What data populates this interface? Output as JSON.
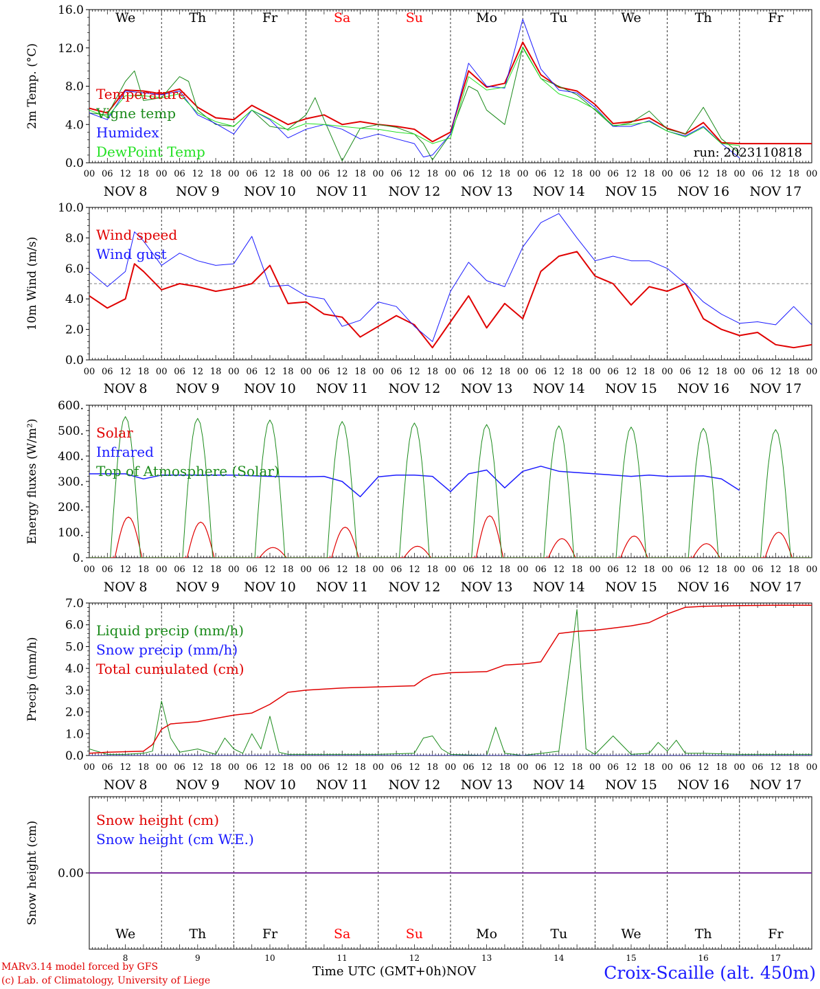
{
  "run_label": "run: 2023110818",
  "footer": {
    "model": "MARv3.14 model forced by GFS",
    "credit": "(c) Lab. of Climatology, University of Liege",
    "time_axis": "Time UTC (GMT+0h)",
    "month": "NOV",
    "station": "Croix-Scaille (alt. 450m)"
  },
  "days": [
    {
      "weekday": "We",
      "date": "8",
      "label": "NOV  8",
      "weekend": false
    },
    {
      "weekday": "Th",
      "date": "9",
      "label": "NOV  9",
      "weekend": false
    },
    {
      "weekday": "Fr",
      "date": "10",
      "label": "NOV 10",
      "weekend": false
    },
    {
      "weekday": "Sa",
      "date": "11",
      "label": "NOV 11",
      "weekend": true
    },
    {
      "weekday": "Su",
      "date": "12",
      "label": "NOV 12",
      "weekend": true
    },
    {
      "weekday": "Mo",
      "date": "13",
      "label": "NOV 13",
      "weekend": false
    },
    {
      "weekday": "Tu",
      "date": "14",
      "label": "NOV 14",
      "weekend": false
    },
    {
      "weekday": "We",
      "date": "15",
      "label": "NOV 15",
      "weekend": false
    },
    {
      "weekday": "Th",
      "date": "16",
      "label": "NOV 16",
      "weekend": false
    },
    {
      "weekday": "Fr",
      "date": "17",
      "label": "NOV 17",
      "weekend": false
    }
  ],
  "hour_ticks": [
    "00",
    "06",
    "12",
    "18"
  ],
  "final_hour_tick": "00",
  "colors": {
    "red": "#e00000",
    "green": "#1a8a1a",
    "blue": "#1a1aff",
    "lime": "#22e022",
    "purple": "#7a2a9a",
    "weekend": "#ff0000"
  },
  "chart_data": [
    {
      "id": "temp",
      "type": "line",
      "ylabel": "2m Temp. (°C)",
      "ylim": [
        0,
        16
      ],
      "yticks": [
        "0.0",
        "4.0",
        "8.0",
        "12.0",
        "16.0"
      ],
      "x_unit": "hours since NOV 8 00 UTC",
      "x_range": [
        0,
        240
      ],
      "legend_placement": "left",
      "series": [
        {
          "name": "Temperature",
          "color": "red",
          "width": 2,
          "x": [
            0,
            6,
            12,
            18,
            24,
            30,
            36,
            42,
            48,
            54,
            60,
            66,
            72,
            78,
            84,
            90,
            96,
            102,
            108,
            114,
            120,
            126,
            132,
            138,
            144,
            150,
            156,
            162,
            168,
            174,
            180,
            186,
            192,
            198,
            204,
            210,
            216,
            222,
            228,
            234,
            240
          ],
          "values": [
            5.7,
            5.2,
            7.6,
            7.5,
            7.2,
            7.7,
            5.8,
            4.7,
            4.5,
            6.0,
            5.0,
            4.0,
            4.6,
            5.0,
            4.0,
            4.3,
            4.0,
            3.8,
            3.5,
            2.2,
            3.2,
            9.6,
            7.9,
            8.3,
            12.6,
            9.2,
            7.9,
            7.5,
            6.1,
            4.1,
            4.3,
            4.7,
            3.6,
            3.0,
            4.2,
            2.1,
            2.0,
            2.0,
            2.0,
            2.0,
            2.0
          ]
        },
        {
          "name": "Vigne temp",
          "color": "green",
          "width": 1,
          "x": [
            0,
            6,
            12,
            15,
            18,
            24,
            30,
            33,
            36,
            42,
            48,
            54,
            60,
            66,
            72,
            75,
            78,
            84,
            90,
            96,
            102,
            108,
            111,
            114,
            120,
            126,
            129,
            132,
            138,
            144,
            150,
            156,
            162,
            168,
            174,
            180,
            186,
            192,
            198,
            204,
            210,
            216
          ],
          "values": [
            5.2,
            5.0,
            8.5,
            9.6,
            6.5,
            6.8,
            9.0,
            8.5,
            5.5,
            4.0,
            3.8,
            5.5,
            3.8,
            3.5,
            5.0,
            6.8,
            4.5,
            0.2,
            3.6,
            4.0,
            3.7,
            3.0,
            2.0,
            0.3,
            3.0,
            8.0,
            7.5,
            5.5,
            4.0,
            12.1,
            8.8,
            8.0,
            7.1,
            5.5,
            3.8,
            4.2,
            5.4,
            3.5,
            3.0,
            5.8,
            2.5,
            1.0
          ]
        },
        {
          "name": "Humidex",
          "color": "blue",
          "width": 1,
          "x": [
            0,
            6,
            12,
            18,
            24,
            30,
            36,
            42,
            48,
            54,
            60,
            66,
            72,
            78,
            84,
            90,
            96,
            102,
            108,
            111,
            114,
            120,
            126,
            132,
            138,
            144,
            150,
            156,
            162,
            168,
            174,
            180,
            186,
            192,
            198,
            204,
            210,
            216
          ],
          "values": [
            5.2,
            4.5,
            7.5,
            7.3,
            7.1,
            7.5,
            5.0,
            4.1,
            3.0,
            5.5,
            4.5,
            2.6,
            3.5,
            4.0,
            3.5,
            2.5,
            3.0,
            2.5,
            2.0,
            0.6,
            0.8,
            3.0,
            10.4,
            8.0,
            7.8,
            15.0,
            9.8,
            7.6,
            7.3,
            5.8,
            3.8,
            3.8,
            4.4,
            3.3,
            2.8,
            3.8,
            2.0,
            0.5
          ]
        },
        {
          "name": "DewPoint Temp",
          "color": "lime",
          "width": 1,
          "x": [
            0,
            6,
            12,
            18,
            24,
            30,
            36,
            42,
            48,
            54,
            60,
            66,
            72,
            78,
            84,
            90,
            96,
            102,
            108,
            114,
            120,
            126,
            132,
            138,
            144,
            150,
            156,
            162,
            168,
            174,
            180,
            186,
            192,
            198,
            204,
            210,
            216
          ],
          "values": [
            5.5,
            4.8,
            7.0,
            7.0,
            6.8,
            7.2,
            5.2,
            4.3,
            3.8,
            5.5,
            4.6,
            3.4,
            4.1,
            4.0,
            3.8,
            3.6,
            3.5,
            3.2,
            3.0,
            2.0,
            2.6,
            9.0,
            7.6,
            7.9,
            12.0,
            8.8,
            7.2,
            6.6,
            5.6,
            3.9,
            4.0,
            4.3,
            3.3,
            2.7,
            3.7,
            2.0,
            1.8
          ]
        }
      ]
    },
    {
      "id": "wind",
      "type": "line",
      "ylabel": "10m Wind (m/s)",
      "ylim": [
        0,
        10
      ],
      "yticks": [
        "0.0",
        "2.0",
        "4.0",
        "6.0",
        "8.0",
        "10.0"
      ],
      "ref_line": 5.0,
      "x_range": [
        0,
        240
      ],
      "legend_placement": "left",
      "series": [
        {
          "name": "Wind speed",
          "color": "red",
          "width": 2,
          "x": [
            0,
            6,
            12,
            15,
            18,
            24,
            30,
            36,
            42,
            48,
            54,
            60,
            66,
            72,
            78,
            84,
            90,
            96,
            102,
            108,
            114,
            120,
            126,
            132,
            138,
            144,
            150,
            156,
            162,
            168,
            174,
            180,
            186,
            192,
            198,
            204,
            210,
            216,
            222,
            228,
            234,
            240
          ],
          "values": [
            4.2,
            3.4,
            4.0,
            6.3,
            5.8,
            4.6,
            5.0,
            4.8,
            4.5,
            4.7,
            5.0,
            6.2,
            3.7,
            3.8,
            3.0,
            2.8,
            1.5,
            2.2,
            2.9,
            2.3,
            0.8,
            2.5,
            4.2,
            2.1,
            3.7,
            2.7,
            5.8,
            6.8,
            7.1,
            5.5,
            5.0,
            3.6,
            4.8,
            4.5,
            5.0,
            2.7,
            2.0,
            1.6,
            1.8,
            1.0,
            0.8,
            1.0
          ]
        },
        {
          "name": "Wind gust",
          "color": "blue",
          "width": 1,
          "x": [
            0,
            6,
            12,
            15,
            18,
            24,
            30,
            36,
            42,
            48,
            54,
            60,
            66,
            72,
            78,
            84,
            90,
            96,
            102,
            108,
            114,
            120,
            126,
            132,
            138,
            144,
            150,
            156,
            162,
            168,
            174,
            180,
            186,
            192,
            198,
            204,
            210,
            216,
            222,
            228,
            234,
            240
          ],
          "values": [
            5.8,
            4.8,
            5.8,
            8.4,
            7.8,
            6.2,
            7.0,
            6.5,
            6.2,
            6.3,
            8.1,
            4.8,
            4.9,
            4.2,
            4.0,
            2.2,
            2.6,
            3.8,
            3.5,
            2.2,
            1.2,
            4.5,
            6.4,
            5.2,
            4.8,
            7.4,
            9.0,
            9.6,
            8.0,
            6.5,
            6.8,
            6.5,
            6.5,
            6.0,
            5.0,
            3.8,
            3.0,
            2.4,
            2.5,
            2.3,
            3.5,
            2.3
          ]
        }
      ]
    },
    {
      "id": "energy",
      "type": "line",
      "ylabel": "Energy fluxes (W/m²)",
      "ylim": [
        0,
        600
      ],
      "yticks": [
        "0.",
        "100.",
        "200.",
        "300.",
        "400.",
        "500.",
        "600."
      ],
      "x_range": [
        0,
        240
      ],
      "legend_placement": "left",
      "series": [
        {
          "name": "Solar",
          "color": "red",
          "width": 1.2,
          "peak_hour": 13,
          "halfwidth_hours": 4.5,
          "daily_peaks": [
            160,
            140,
            40,
            120,
            45,
            165,
            75,
            85,
            55,
            100
          ]
        },
        {
          "name": "Infrared",
          "color": "blue",
          "width": 1.5,
          "x": [
            0,
            12,
            18,
            24,
            36,
            48,
            60,
            72,
            78,
            84,
            90,
            96,
            102,
            108,
            114,
            120,
            126,
            132,
            138,
            144,
            150,
            156,
            168,
            180,
            186,
            192,
            204,
            210,
            216
          ],
          "values": [
            330,
            330,
            310,
            325,
            325,
            325,
            320,
            318,
            320,
            300,
            240,
            318,
            325,
            325,
            320,
            260,
            330,
            345,
            275,
            340,
            360,
            340,
            330,
            320,
            325,
            320,
            322,
            310,
            265
          ]
        },
        {
          "name": "Top of Atmosphere (Solar)",
          "color": "green",
          "width": 1,
          "peak_hour": 12,
          "halfwidth_hours": 5,
          "daily_peaks": [
            555,
            548,
            542,
            536,
            530,
            524,
            519,
            514,
            509,
            504
          ]
        }
      ]
    },
    {
      "id": "precip",
      "type": "line",
      "ylabel": "Precip (mm/h)",
      "ylim": [
        0,
        7
      ],
      "yticks": [
        "0.0",
        "1.0",
        "2.0",
        "3.0",
        "4.0",
        "5.0",
        "6.0",
        "7.0"
      ],
      "x_range": [
        0,
        240
      ],
      "legend_placement": "left",
      "series": [
        {
          "name": "Liquid precip (mm/h)",
          "color": "green",
          "width": 1,
          "x": [
            0,
            6,
            12,
            18,
            21,
            24,
            27,
            30,
            36,
            42,
            45,
            48,
            51,
            54,
            57,
            60,
            63,
            66,
            72,
            78,
            84,
            90,
            96,
            108,
            111,
            114,
            117,
            120,
            132,
            135,
            138,
            144,
            156,
            162,
            165,
            168,
            174,
            180,
            186,
            189,
            192,
            195,
            198,
            204,
            216,
            228,
            240
          ],
          "values": [
            0.3,
            0.05,
            0.05,
            0.1,
            0.2,
            2.5,
            0.8,
            0.15,
            0.3,
            0.05,
            0.8,
            0.3,
            0.1,
            1.0,
            0.3,
            1.8,
            0.15,
            0.05,
            0.05,
            0.05,
            0.05,
            0.05,
            0.05,
            0.1,
            0.8,
            0.9,
            0.3,
            0.05,
            0.0,
            1.3,
            0.1,
            0.0,
            0.2,
            6.7,
            0.3,
            0.05,
            0.9,
            0.05,
            0.1,
            0.6,
            0.2,
            0.7,
            0.1,
            0.1,
            0.05,
            0.05,
            0.05
          ]
        },
        {
          "name": "Snow precip (mm/h)",
          "color": "blue",
          "width": 1,
          "x": [
            0,
            240
          ],
          "values": [
            0.0,
            0.0
          ]
        },
        {
          "name": "Total cumulated (cm)",
          "color": "red",
          "width": 1.5,
          "x": [
            0,
            6,
            18,
            21,
            24,
            27,
            36,
            48,
            54,
            60,
            66,
            72,
            84,
            96,
            108,
            111,
            114,
            120,
            132,
            138,
            144,
            150,
            156,
            162,
            168,
            174,
            180,
            186,
            192,
            198,
            204,
            216,
            228,
            240
          ],
          "values": [
            0.1,
            0.15,
            0.2,
            0.5,
            1.2,
            1.45,
            1.55,
            1.85,
            1.95,
            2.35,
            2.9,
            3.0,
            3.1,
            3.15,
            3.2,
            3.5,
            3.7,
            3.8,
            3.85,
            4.15,
            4.2,
            4.3,
            5.6,
            5.7,
            5.75,
            5.85,
            5.95,
            6.1,
            6.5,
            6.8,
            6.85,
            6.88,
            6.9,
            6.9
          ]
        }
      ]
    },
    {
      "id": "snow",
      "type": "line",
      "ylabel": "Snow height (cm)",
      "yticks": [
        "0.00"
      ],
      "ylim": [
        -1,
        1
      ],
      "x_range": [
        0,
        240
      ],
      "legend_placement": "left",
      "series": [
        {
          "name": "Snow height (cm)",
          "color": "red",
          "width": 1.5,
          "x": [
            0,
            240
          ],
          "values": [
            0,
            0
          ]
        },
        {
          "name": "Snow height (cm W.E.)",
          "color": "blue",
          "width": 1.5,
          "x": [
            0,
            240
          ],
          "values": [
            0,
            0
          ]
        }
      ]
    }
  ]
}
